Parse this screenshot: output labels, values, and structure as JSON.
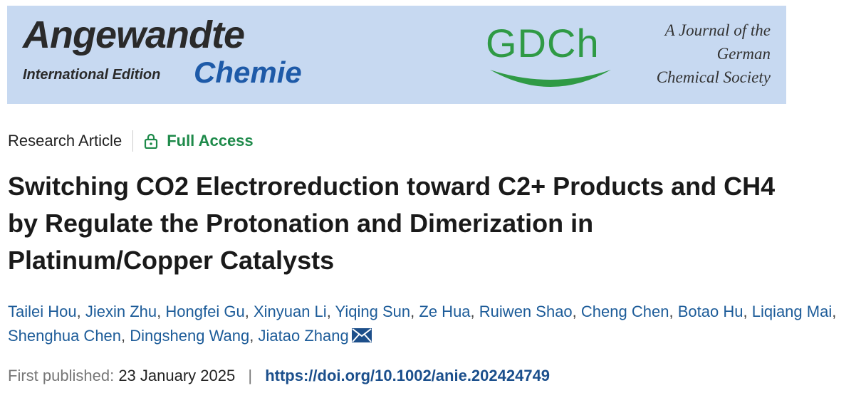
{
  "banner": {
    "journal_name": "Angewandte",
    "edition": "International Edition",
    "journal_subname": "Chemie",
    "society_logo": "GDCh",
    "society_lines": [
      "A Journal of the",
      "German",
      "Chemical Society"
    ]
  },
  "article_type": "Research Article",
  "access": "Full Access",
  "title_lines": [
    "Switching CO2 Electroreduction toward C2+ Products and CH4",
    "by Regulate the Protonation and Dimerization in",
    "Platinum/Copper Catalysts"
  ],
  "authors": {
    "names": [
      "Tailei Hou",
      "Jiexin Zhu",
      "Hongfei Gu",
      "Xinyuan Li",
      "Yiqing Sun",
      "Ze Hua",
      "Ruiwen Shao",
      "Cheng Chen",
      "Botao Hu",
      "Liqiang Mai",
      "Shenghua Chen",
      "Dingsheng Wang",
      "Jiatao Zhang"
    ],
    "separator": ","
  },
  "published": {
    "label": "First published:",
    "date": "23 January 2025",
    "separator": "|",
    "doi": "https://doi.org/10.1002/anie.202424749"
  }
}
